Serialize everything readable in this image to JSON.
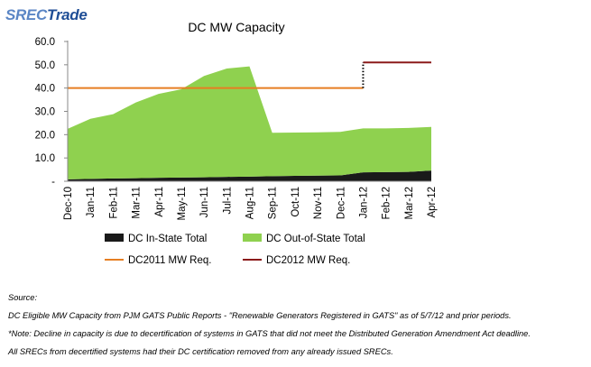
{
  "logo": {
    "part1": "SREC",
    "part2": "Trade"
  },
  "chart_data": {
    "type": "area",
    "title": "DC MW Capacity",
    "xlabel": "",
    "ylabel": "",
    "ylim": [
      0,
      60
    ],
    "yticks": [
      {
        "v": 0,
        "label": "-"
      },
      {
        "v": 10,
        "label": "10.0"
      },
      {
        "v": 20,
        "label": "20.0"
      },
      {
        "v": 30,
        "label": "30.0"
      },
      {
        "v": 40,
        "label": "40.0"
      },
      {
        "v": 50,
        "label": "50.0"
      },
      {
        "v": 60,
        "label": "60.0"
      }
    ],
    "categories": [
      "Dec-10",
      "Jan-11",
      "Feb-11",
      "Mar-11",
      "Apr-11",
      "May-11",
      "Jun-11",
      "Jul-11",
      "Aug-11",
      "Sep-11",
      "Oct-11",
      "Nov-11",
      "Dec-11",
      "Jan-12",
      "Feb-12",
      "Mar-12",
      "Apr-12"
    ],
    "series": [
      {
        "name": "DC In-State Total",
        "kind": "stacked-area",
        "color": "#1a1a1a",
        "values": [
          0.8,
          1.0,
          1.2,
          1.3,
          1.5,
          1.6,
          1.7,
          1.9,
          2.0,
          2.2,
          2.3,
          2.4,
          2.5,
          3.8,
          3.9,
          4.0,
          4.6
        ]
      },
      {
        "name": "DC Out-of-State Total",
        "kind": "stacked-area",
        "color": "#8fd14f",
        "values": [
          21.7,
          25.8,
          27.6,
          32.5,
          36.0,
          37.9,
          43.5,
          46.5,
          47.3,
          18.6,
          18.6,
          18.6,
          18.7,
          18.9,
          18.8,
          18.9,
          18.7
        ]
      },
      {
        "name": "DC2011 MW Req.",
        "kind": "line",
        "color": "#e67e22",
        "values": [
          40.0,
          40.0,
          40.0,
          40.0,
          40.0,
          40.0,
          40.0,
          40.0,
          40.0,
          40.0,
          40.0,
          40.0,
          40.0,
          40.0,
          null,
          null,
          null
        ]
      },
      {
        "name": "DC2012 MW Req.",
        "kind": "line",
        "color": "#8b1a1a",
        "values": [
          null,
          null,
          null,
          null,
          null,
          null,
          null,
          null,
          null,
          null,
          null,
          null,
          null,
          51.0,
          51.0,
          51.0,
          51.0
        ]
      }
    ],
    "legend_position": "bottom",
    "grid": false
  },
  "notes": [
    "Source:",
    "DC Eligible MW Capacity from PJM GATS Public Reports - \"Renewable Generators Registered in GATS\" as of 5/7/12 and prior periods.",
    "*Note: Decline in capacity is due to decertification of systems in GATS that did not meet the Distributed Generation Amendment Act deadline.",
    "All SRECs from decertified systems had their DC certification removed from any already issued SRECs."
  ]
}
